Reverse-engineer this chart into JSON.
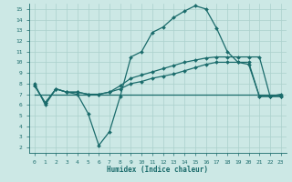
{
  "xlabel": "Humidex (Indice chaleur)",
  "background_color": "#cce8e5",
  "grid_color": "#aad0cc",
  "line_color": "#1a6b6b",
  "xlim": [
    -0.5,
    23.5
  ],
  "ylim": [
    1.5,
    15.5
  ],
  "xticks": [
    0,
    1,
    2,
    3,
    4,
    5,
    6,
    7,
    8,
    9,
    10,
    11,
    12,
    13,
    14,
    15,
    16,
    17,
    18,
    19,
    20,
    21,
    22,
    23
  ],
  "yticks": [
    2,
    3,
    4,
    5,
    6,
    7,
    8,
    9,
    10,
    11,
    12,
    13,
    14,
    15
  ],
  "curve1_x": [
    0,
    1,
    2,
    3,
    4,
    5,
    6,
    7,
    8,
    9,
    10,
    11,
    12,
    13,
    14,
    15,
    16,
    17,
    18,
    19,
    20,
    21,
    22,
    23
  ],
  "curve1_y": [
    8.0,
    6.0,
    7.5,
    7.2,
    7.0,
    5.2,
    2.2,
    3.5,
    6.8,
    10.5,
    11.0,
    12.8,
    13.3,
    14.2,
    14.8,
    15.3,
    15.0,
    13.2,
    11.0,
    10.0,
    9.8,
    6.8,
    6.8,
    7.0
  ],
  "curve2_x": [
    0,
    1,
    2,
    3,
    4,
    5,
    6,
    7,
    8,
    9,
    10,
    11,
    12,
    13,
    14,
    15,
    16,
    17,
    18,
    19,
    20,
    21,
    22,
    23
  ],
  "curve2_y": [
    7.8,
    6.2,
    7.5,
    7.2,
    7.2,
    7.0,
    7.0,
    7.2,
    7.8,
    8.5,
    8.8,
    9.1,
    9.4,
    9.7,
    10.0,
    10.2,
    10.4,
    10.5,
    10.5,
    10.5,
    10.5,
    10.5,
    6.8,
    6.8
  ],
  "curve3_x": [
    0,
    1,
    2,
    3,
    4,
    5,
    6,
    7,
    8,
    9,
    10,
    11,
    12,
    13,
    14,
    15,
    16,
    17,
    18,
    19,
    20,
    21,
    22,
    23
  ],
  "curve3_y": [
    7.8,
    6.2,
    7.5,
    7.2,
    7.2,
    7.0,
    7.0,
    7.2,
    7.5,
    8.0,
    8.2,
    8.5,
    8.7,
    8.9,
    9.2,
    9.5,
    9.8,
    10.0,
    10.0,
    10.0,
    10.0,
    6.8,
    6.8,
    6.8
  ],
  "curve4_x": [
    0,
    23
  ],
  "curve4_y": [
    7.0,
    7.0
  ],
  "markersize": 2.0,
  "linewidth": 0.9
}
